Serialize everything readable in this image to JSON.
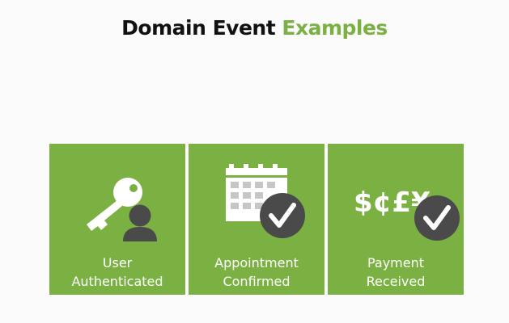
{
  "slide": {
    "title_main": "Domain Event",
    "title_accent": "Examples",
    "colors": {
      "tile_green": "#7bb143",
      "accent_green": "#7bb143",
      "icon_dark": "#4a4a4a",
      "background": "#fbfbfb"
    }
  },
  "tiles": [
    {
      "icon": "key-user-icon",
      "label_line1": "User",
      "label_line2": "Authenticated"
    },
    {
      "icon": "calendar-check-icon",
      "label_line1": "Appointment",
      "label_line2": "Confirmed"
    },
    {
      "icon": "currency-check-icon",
      "currency_symbols": "$¢£¥",
      "label_line1": "Payment",
      "label_line2": "Received"
    }
  ]
}
